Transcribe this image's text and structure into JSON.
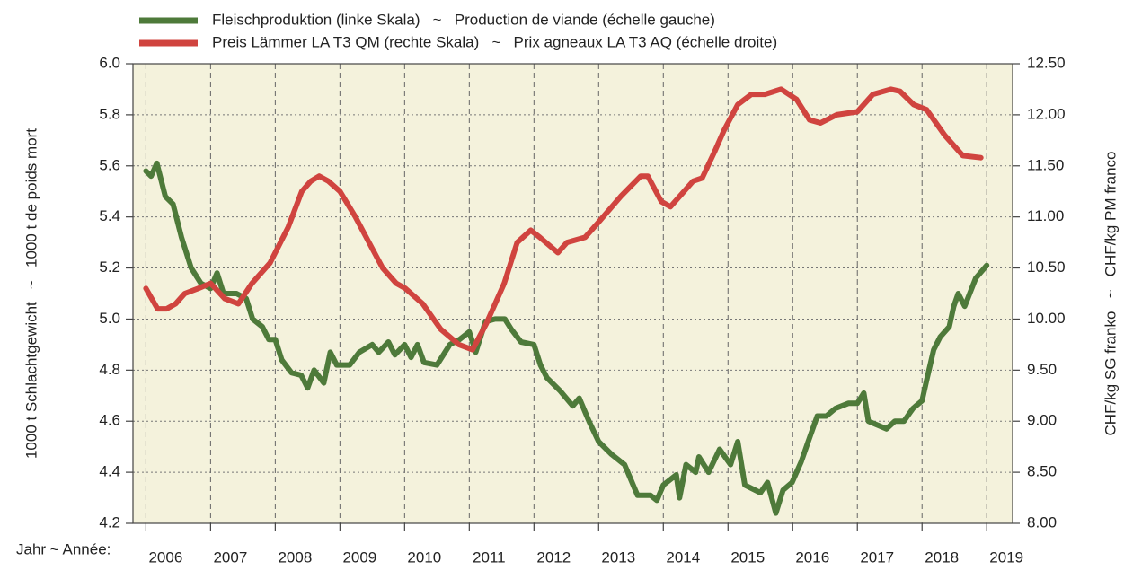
{
  "chart_data": {
    "type": "line",
    "xlabel": "Jahr ~ Année:",
    "ylabel": "1000 t Schlachtgewicht   ~   1000 t de poids mort",
    "y2label": "CHF/kg SG franko   ~   CHF/kg PM franco",
    "xlim": [
      2005.8,
      2019.4
    ],
    "xticks": [
      2006,
      2007,
      2008,
      2009,
      2010,
      2011,
      2012,
      2013,
      2014,
      2015,
      2016,
      2017,
      2018,
      2019
    ],
    "ylim": [
      4.2,
      6.0
    ],
    "yticks": [
      4.2,
      4.4,
      4.6,
      4.8,
      {
        "value": 5.0,
        "label": "5.0"
      },
      5.2,
      5.4,
      5.6,
      5.8,
      {
        "value": 6.0,
        "label": "6.0"
      }
    ],
    "y2lim": [
      8.0,
      12.5
    ],
    "y2ticks": [
      {
        "value": 8.0,
        "label": "8.00"
      },
      {
        "value": 8.5,
        "label": "8.50"
      },
      {
        "value": 9.0,
        "label": "9.00"
      },
      {
        "value": 9.5,
        "label": "9.50"
      },
      {
        "value": 10.0,
        "label": "10.00"
      },
      {
        "value": 10.5,
        "label": "10.50"
      },
      {
        "value": 11.0,
        "label": "11.00"
      },
      {
        "value": 11.5,
        "label": "11.50"
      },
      {
        "value": 12.0,
        "label": "12.00"
      },
      {
        "value": 12.5,
        "label": "12.50"
      }
    ],
    "grid": true,
    "series": [
      {
        "name": "Fleischproduktion (linke Skala)   ~   Production de viande (échelle gauche)",
        "color": "#4e7a3a",
        "axis": "y",
        "x": [
          2006.0,
          2006.08,
          2006.17,
          2006.3,
          2006.42,
          2006.55,
          2006.7,
          2006.85,
          2007.0,
          2007.1,
          2007.2,
          2007.4,
          2007.55,
          2007.65,
          2007.8,
          2007.9,
          2008.0,
          2008.1,
          2008.25,
          2008.4,
          2008.5,
          2008.6,
          2008.75,
          2008.85,
          2008.95,
          2009.15,
          2009.3,
          2009.5,
          2009.6,
          2009.75,
          2009.85,
          2010.0,
          2010.1,
          2010.2,
          2010.3,
          2010.5,
          2010.7,
          2010.85,
          2011.0,
          2011.1,
          2011.25,
          2011.4,
          2011.55,
          2011.65,
          2011.8,
          2012.0,
          2012.1,
          2012.2,
          2012.4,
          2012.6,
          2012.7,
          2012.85,
          2013.0,
          2013.2,
          2013.4,
          2013.6,
          2013.8,
          2013.9,
          2014.0,
          2014.2,
          2014.25,
          2014.35,
          2014.5,
          2014.55,
          2014.7,
          2014.87,
          2015.04,
          2015.15,
          2015.26,
          2015.5,
          2015.61,
          2015.74,
          2015.85,
          2015.99,
          2016.13,
          2016.24,
          2016.38,
          2016.52,
          2016.66,
          2016.86,
          2017.0,
          2017.1,
          2017.17,
          2017.45,
          2017.58,
          2017.72,
          2017.86,
          2018.0,
          2018.07,
          2018.18,
          2018.28,
          2018.42,
          2018.49,
          2018.56,
          2018.66,
          2018.83,
          2019.0
        ],
        "values": [
          5.58,
          5.56,
          5.61,
          5.48,
          5.45,
          5.32,
          5.2,
          5.14,
          5.12,
          5.18,
          5.1,
          5.1,
          5.08,
          5.0,
          4.97,
          4.92,
          4.92,
          4.84,
          4.79,
          4.78,
          4.73,
          4.8,
          4.75,
          4.87,
          4.82,
          4.82,
          4.87,
          4.9,
          4.87,
          4.91,
          4.86,
          4.9,
          4.85,
          4.9,
          4.83,
          4.82,
          4.9,
          4.92,
          4.95,
          4.87,
          4.99,
          5.0,
          5.0,
          4.96,
          4.91,
          4.9,
          4.82,
          4.77,
          4.72,
          4.66,
          4.69,
          4.6,
          4.52,
          4.47,
          4.43,
          4.31,
          4.31,
          4.29,
          4.35,
          4.39,
          4.3,
          4.43,
          4.4,
          4.46,
          4.4,
          4.49,
          4.43,
          4.52,
          4.35,
          4.32,
          4.36,
          4.24,
          4.33,
          4.36,
          4.44,
          4.52,
          4.62,
          4.62,
          4.65,
          4.67,
          4.67,
          4.71,
          4.6,
          4.57,
          4.6,
          4.6,
          4.65,
          4.68,
          4.76,
          4.88,
          4.93,
          4.97,
          5.05,
          5.1,
          5.05,
          5.16,
          5.21
        ]
      },
      {
        "name": "Preis Lämmer LA T3 QM (rechte Skala)   ~   Prix agneaux LA T3 AQ (échelle droite)",
        "color": "#d0443f",
        "axis": "y2",
        "x": [
          2006.0,
          2006.18,
          2006.32,
          2006.46,
          2006.6,
          2006.81,
          2007.0,
          2007.22,
          2007.43,
          2007.64,
          2007.92,
          2008.2,
          2008.41,
          2008.55,
          2008.68,
          2008.82,
          2009.0,
          2009.24,
          2009.45,
          2009.66,
          2009.87,
          2010.01,
          2010.28,
          2010.56,
          2010.84,
          2011.05,
          2011.26,
          2011.54,
          2011.74,
          2011.95,
          2012.09,
          2012.37,
          2012.51,
          2012.79,
          2013.0,
          2013.34,
          2013.65,
          2013.76,
          2013.97,
          2014.11,
          2014.46,
          2014.6,
          2014.8,
          2014.94,
          2015.15,
          2015.36,
          2015.57,
          2015.82,
          2016.06,
          2016.26,
          2016.43,
          2016.68,
          2017.0,
          2017.24,
          2017.52,
          2017.66,
          2017.87,
          2018.07,
          2018.35,
          2018.63,
          2018.91
        ],
        "values": [
          10.3,
          10.1,
          10.1,
          10.15,
          10.25,
          10.3,
          10.35,
          10.2,
          10.15,
          10.35,
          10.55,
          10.9,
          11.25,
          11.35,
          11.4,
          11.35,
          11.25,
          11.0,
          10.75,
          10.5,
          10.35,
          10.3,
          10.15,
          9.9,
          9.75,
          9.7,
          9.95,
          10.35,
          10.75,
          10.87,
          10.8,
          10.65,
          10.75,
          10.8,
          10.95,
          11.2,
          11.4,
          11.4,
          11.15,
          11.1,
          11.35,
          11.38,
          11.65,
          11.85,
          12.1,
          12.2,
          12.2,
          12.25,
          12.15,
          11.95,
          11.92,
          12.0,
          12.03,
          12.2,
          12.25,
          12.23,
          12.1,
          12.05,
          11.8,
          11.6,
          11.58
        ]
      }
    ]
  }
}
